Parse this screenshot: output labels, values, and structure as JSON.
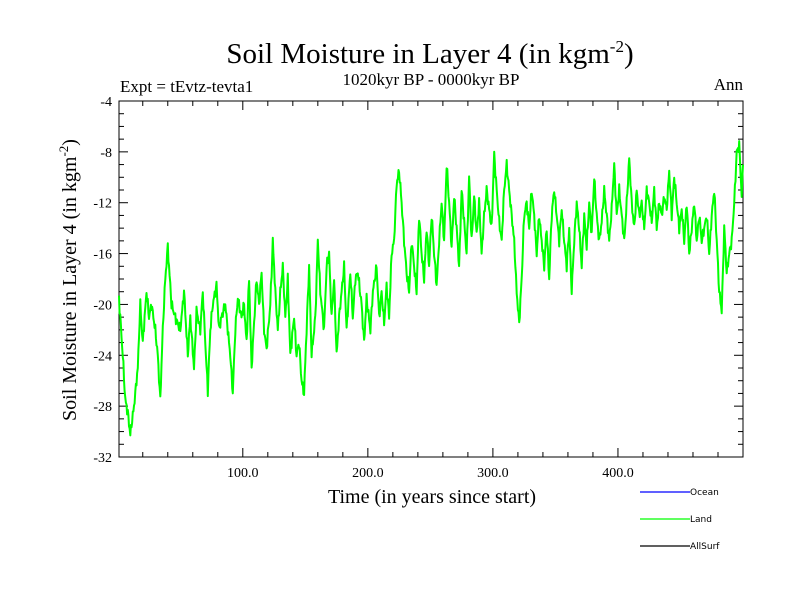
{
  "chart_data": {
    "type": "line",
    "title": "Soil Moisture in Layer 4 (in kgm",
    "title_exp": "-2",
    "title_close": ")",
    "subtitle_left": "Expt = tEvtz-tevta1",
    "subtitle_center": "1020kyr BP - 0000kyr BP",
    "subtitle_right": "Ann",
    "xlabel": "Time (in years since start)",
    "ylabel": "Soil Moisture in Layer 4 (in kgm",
    "ylabel_exp": "-2",
    "ylabel_close": ")",
    "xlim": [
      1,
      500
    ],
    "ylim": [
      -32,
      -4
    ],
    "x_ticks": [
      100,
      200,
      300,
      400
    ],
    "x_tick_labels": [
      "100.0",
      "200.0",
      "300.0",
      "400.0"
    ],
    "y_ticks": [
      -32,
      -28,
      -24,
      -20,
      -16,
      -12,
      -8,
      -4
    ],
    "y_tick_labels": [
      "-32",
      "-28",
      "-24",
      "-20",
      "-16",
      "-12",
      "-8",
      "-4"
    ],
    "legend": [
      {
        "name": "Ocean",
        "color": "#0000ff"
      },
      {
        "name": "Land",
        "color": "#00ff00"
      },
      {
        "name": "AllSurf",
        "color": "#000000"
      }
    ],
    "series": [
      {
        "name": "Land",
        "color": "#00ff00",
        "anchors": [
          [
            1,
            -19.5
          ],
          [
            2,
            -21
          ],
          [
            4,
            -24
          ],
          [
            6,
            -27.5
          ],
          [
            8,
            -28.5
          ],
          [
            10,
            -30.2
          ],
          [
            13,
            -28
          ],
          [
            16,
            -25
          ],
          [
            18,
            -20
          ],
          [
            20,
            -23
          ],
          [
            23,
            -19
          ],
          [
            25,
            -21
          ],
          [
            27,
            -20
          ],
          [
            30,
            -22
          ],
          [
            32,
            -24
          ],
          [
            34,
            -27.5
          ],
          [
            36,
            -22
          ],
          [
            38,
            -18
          ],
          [
            40,
            -15.5
          ],
          [
            43,
            -20
          ],
          [
            46,
            -21
          ],
          [
            50,
            -22
          ],
          [
            53,
            -19
          ],
          [
            56,
            -24
          ],
          [
            58,
            -21
          ],
          [
            61,
            -25
          ],
          [
            63,
            -20.5
          ],
          [
            66,
            -22
          ],
          [
            68,
            -19
          ],
          [
            70,
            -23
          ],
          [
            72,
            -26.8
          ],
          [
            74,
            -22
          ],
          [
            76,
            -20
          ],
          [
            79,
            -18.5
          ],
          [
            81,
            -22
          ],
          [
            83,
            -21
          ],
          [
            86,
            -20
          ],
          [
            88,
            -22
          ],
          [
            90,
            -24
          ],
          [
            92,
            -27
          ],
          [
            94,
            -22
          ],
          [
            96,
            -19.5
          ],
          [
            99,
            -21
          ],
          [
            101,
            -20
          ],
          [
            103,
            -23
          ],
          [
            105,
            -18
          ],
          [
            107,
            -25
          ],
          [
            109,
            -21.5
          ],
          [
            111,
            -18
          ],
          [
            113,
            -20
          ],
          [
            115,
            -17.5
          ],
          [
            117,
            -22
          ],
          [
            119,
            -23.5
          ],
          [
            122,
            -20
          ],
          [
            124,
            -15
          ],
          [
            126,
            -19
          ],
          [
            128,
            -22
          ],
          [
            130,
            -19
          ],
          [
            132,
            -17
          ],
          [
            134,
            -21
          ],
          [
            136,
            -18
          ],
          [
            138,
            -24
          ],
          [
            141,
            -21
          ],
          [
            143,
            -24
          ],
          [
            145,
            -23
          ],
          [
            147,
            -26
          ],
          [
            149,
            -27
          ],
          [
            151,
            -22
          ],
          [
            153,
            -17
          ],
          [
            155,
            -24
          ],
          [
            158,
            -21
          ],
          [
            160,
            -15
          ],
          [
            162,
            -19
          ],
          [
            165,
            -22
          ],
          [
            167,
            -17
          ],
          [
            169,
            -16
          ],
          [
            171,
            -21
          ],
          [
            173,
            -18
          ],
          [
            175,
            -24
          ],
          [
            177,
            -21
          ],
          [
            179,
            -19
          ],
          [
            181,
            -17
          ],
          [
            183,
            -22
          ],
          [
            186,
            -17.5
          ],
          [
            188,
            -21
          ],
          [
            190,
            -18
          ],
          [
            192,
            -17.5
          ],
          [
            195,
            -20
          ],
          [
            197,
            -23
          ],
          [
            199,
            -19.5
          ],
          [
            202,
            -22
          ],
          [
            204,
            -19
          ],
          [
            207,
            -17
          ],
          [
            209,
            -21
          ],
          [
            211,
            -19
          ],
          [
            213,
            -21.5
          ],
          [
            215,
            -18.5
          ],
          [
            217,
            -21
          ],
          [
            219,
            -16
          ],
          [
            221,
            -15
          ],
          [
            223,
            -10.5
          ],
          [
            225,
            -9.5
          ],
          [
            227,
            -12
          ],
          [
            229,
            -15
          ],
          [
            231,
            -17.5
          ],
          [
            233,
            -19
          ],
          [
            235,
            -15
          ],
          [
            237,
            -17
          ],
          [
            239,
            -19
          ],
          [
            241,
            -13
          ],
          [
            243,
            -16
          ],
          [
            245,
            -18
          ],
          [
            247,
            -14
          ],
          [
            249,
            -17
          ],
          [
            251,
            -13
          ],
          [
            253,
            -16
          ],
          [
            255,
            -18.5
          ],
          [
            257,
            -15
          ],
          [
            259,
            -12
          ],
          [
            261,
            -15
          ],
          [
            263,
            -9
          ],
          [
            265,
            -12
          ],
          [
            267,
            -15.5
          ],
          [
            269,
            -11.5
          ],
          [
            271,
            -14
          ],
          [
            273,
            -17
          ],
          [
            275,
            -11
          ],
          [
            277,
            -13.5
          ],
          [
            279,
            -16
          ],
          [
            281,
            -10
          ],
          [
            283,
            -15
          ],
          [
            285,
            -11.5
          ],
          [
            287,
            -14.5
          ],
          [
            289,
            -12
          ],
          [
            291,
            -16
          ],
          [
            293,
            -13
          ],
          [
            295,
            -11
          ],
          [
            297,
            -12.5
          ],
          [
            299,
            -14
          ],
          [
            301,
            -8.2
          ],
          [
            303,
            -11
          ],
          [
            305,
            -13.5
          ],
          [
            307,
            -15
          ],
          [
            309,
            -11
          ],
          [
            311,
            -9
          ],
          [
            313,
            -11
          ],
          [
            315,
            -13
          ],
          [
            317,
            -15
          ],
          [
            319,
            -19
          ],
          [
            321,
            -21.5
          ],
          [
            323,
            -18
          ],
          [
            325,
            -13
          ],
          [
            327,
            -12
          ],
          [
            329,
            -14
          ],
          [
            331,
            -11
          ],
          [
            333,
            -13
          ],
          [
            335,
            -16
          ],
          [
            337,
            -13
          ],
          [
            339,
            -15
          ],
          [
            341,
            -17
          ],
          [
            343,
            -14
          ],
          [
            345,
            -18
          ],
          [
            347,
            -13
          ],
          [
            349,
            -11
          ],
          [
            351,
            -13
          ],
          [
            353,
            -15
          ],
          [
            355,
            -12.5
          ],
          [
            357,
            -15
          ],
          [
            359,
            -17
          ],
          [
            361,
            -14
          ],
          [
            363,
            -19
          ],
          [
            365,
            -15
          ],
          [
            367,
            -12
          ],
          [
            369,
            -14
          ],
          [
            371,
            -17
          ],
          [
            373,
            -13
          ],
          [
            375,
            -15.5
          ],
          [
            377,
            -12
          ],
          [
            379,
            -14.5
          ],
          [
            381,
            -10
          ],
          [
            383,
            -13
          ],
          [
            385,
            -15
          ],
          [
            387,
            -13.5
          ],
          [
            389,
            -11
          ],
          [
            391,
            -13
          ],
          [
            393,
            -15
          ],
          [
            395,
            -12.5
          ],
          [
            397,
            -9
          ],
          [
            399,
            -13
          ],
          [
            401,
            -11
          ],
          [
            403,
            -13
          ],
          [
            405,
            -15
          ],
          [
            407,
            -12
          ],
          [
            409,
            -8.5
          ],
          [
            411,
            -12
          ],
          [
            413,
            -14
          ],
          [
            415,
            -11
          ],
          [
            417,
            -13
          ],
          [
            419,
            -12
          ],
          [
            421,
            -14
          ],
          [
            423,
            -11
          ],
          [
            425,
            -12
          ],
          [
            427,
            -13.5
          ],
          [
            429,
            -11
          ],
          [
            431,
            -14
          ],
          [
            433,
            -12
          ],
          [
            435,
            -13
          ],
          [
            437,
            -11.5
          ],
          [
            439,
            -12.5
          ],
          [
            441,
            -9.5
          ],
          [
            443,
            -13
          ],
          [
            445,
            -10
          ],
          [
            447,
            -12
          ],
          [
            449,
            -14
          ],
          [
            451,
            -12.5
          ],
          [
            453,
            -15
          ],
          [
            455,
            -12
          ],
          [
            457,
            -16
          ],
          [
            459,
            -14
          ],
          [
            461,
            -12
          ],
          [
            463,
            -15
          ],
          [
            465,
            -13
          ],
          [
            467,
            -15
          ],
          [
            469,
            -14
          ],
          [
            471,
            -13
          ],
          [
            473,
            -16
          ],
          [
            475,
            -13
          ],
          [
            477,
            -11
          ],
          [
            479,
            -15
          ],
          [
            481,
            -19
          ],
          [
            483,
            -20.5
          ],
          [
            485,
            -14
          ],
          [
            487,
            -17.5
          ],
          [
            489,
            -16
          ],
          [
            491,
            -15
          ],
          [
            493,
            -12
          ],
          [
            495,
            -8
          ],
          [
            497,
            -7.5
          ],
          [
            499,
            -11.5
          ],
          [
            500,
            -9
          ]
        ]
      }
    ]
  }
}
